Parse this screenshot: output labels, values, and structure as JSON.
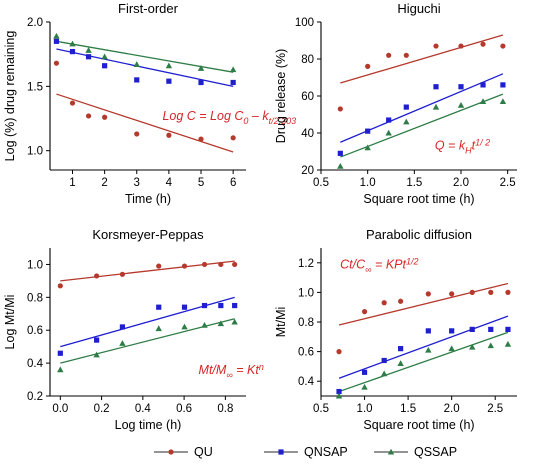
{
  "legend": [
    {
      "name": "QU",
      "color": "#b5392c",
      "marker": "circle"
    },
    {
      "name": "QNSAP",
      "color": "#1f1fd0",
      "marker": "square"
    },
    {
      "name": "QSSAP",
      "color": "#2e7d46",
      "marker": "triangle"
    }
  ],
  "chart_data": [
    {
      "type": "scatter",
      "title": "First-order",
      "xlabel": "Time (h)",
      "ylabel": "Log (%) drug remaining",
      "xlim": [
        0.3,
        6.4
      ],
      "ylim": [
        0.85,
        2.0
      ],
      "xticks": [
        1,
        2,
        3,
        4,
        5,
        6
      ],
      "yticks": [
        1.0,
        1.5,
        2.0
      ],
      "ytick_labels": [
        "1.0",
        "1.5",
        "2.0"
      ],
      "grid": false,
      "annotation": {
        "parts": [
          [
            "Log C = Log C",
            ""
          ],
          [
            "0",
            "sub"
          ],
          [
            " – k",
            ""
          ],
          [
            "t/2.303",
            "sub"
          ]
        ],
        "color": "#d62728",
        "at": [
          3.8,
          1.24
        ]
      },
      "series": [
        {
          "name": "QU",
          "x": [
            0.5,
            1,
            1.5,
            2,
            3,
            4,
            5,
            6
          ],
          "y": [
            1.68,
            1.37,
            1.27,
            1.26,
            1.13,
            1.12,
            1.09,
            1.1
          ],
          "fit": [
            [
              0.5,
              1.44
            ],
            [
              6,
              0.99
            ]
          ]
        },
        {
          "name": "QNSAP",
          "x": [
            0.5,
            1,
            1.5,
            2,
            3,
            4,
            5,
            6
          ],
          "y": [
            1.85,
            1.77,
            1.73,
            1.66,
            1.55,
            1.54,
            1.53,
            1.53
          ],
          "fit": [
            [
              0.5,
              1.79
            ],
            [
              6,
              1.5
            ]
          ]
        },
        {
          "name": "QSSAP",
          "x": [
            0.5,
            1,
            1.5,
            2,
            3,
            4,
            5,
            6
          ],
          "y": [
            1.89,
            1.83,
            1.78,
            1.73,
            1.67,
            1.66,
            1.64,
            1.63
          ],
          "fit": [
            [
              0.5,
              1.85
            ],
            [
              6,
              1.61
            ]
          ]
        }
      ]
    },
    {
      "type": "scatter",
      "title": "Higuchi",
      "xlabel": "Square root time (h)",
      "ylabel": "Drug release (%)",
      "xlim": [
        0.5,
        2.6
      ],
      "ylim": [
        20,
        100
      ],
      "xticks": [
        0.5,
        1.0,
        1.5,
        2.0,
        2.5
      ],
      "xtick_labels": [
        "0.5",
        "1.0",
        "1.5",
        "2.0",
        "2.5"
      ],
      "yticks": [
        20,
        40,
        60,
        80,
        100
      ],
      "grid": false,
      "annotation": {
        "parts": [
          [
            "Q = k",
            ""
          ],
          [
            "H",
            "sub"
          ],
          [
            "t",
            ""
          ],
          [
            "1/ 2",
            "sup"
          ]
        ],
        "color": "#d62728",
        "at": [
          1.72,
          31
        ]
      },
      "series": [
        {
          "name": "QU",
          "x": [
            0.707,
            1.0,
            1.225,
            1.414,
            1.732,
            2.0,
            2.236,
            2.449
          ],
          "y": [
            53,
            76,
            82,
            82,
            87,
            87,
            88,
            87
          ],
          "fit": [
            [
              0.707,
              67
            ],
            [
              2.449,
              93
            ]
          ]
        },
        {
          "name": "QNSAP",
          "x": [
            0.707,
            1.0,
            1.225,
            1.414,
            1.732,
            2.0,
            2.236,
            2.449
          ],
          "y": [
            29,
            41,
            47,
            54,
            65,
            65,
            66,
            66
          ],
          "fit": [
            [
              0.707,
              35
            ],
            [
              2.449,
              72
            ]
          ]
        },
        {
          "name": "QSSAP",
          "x": [
            0.707,
            1.0,
            1.225,
            1.414,
            1.732,
            2.0,
            2.236,
            2.449
          ],
          "y": [
            22,
            32,
            40,
            46,
            54,
            55,
            57,
            57
          ],
          "fit": [
            [
              0.707,
              27
            ],
            [
              2.449,
              61
            ]
          ]
        }
      ]
    },
    {
      "type": "scatter",
      "title": "Korsmeyer-Peppas",
      "xlabel": "Log time (h)",
      "ylabel": "Log Mt/Mi",
      "xlim": [
        -0.05,
        0.9
      ],
      "ylim": [
        0.2,
        1.1
      ],
      "xticks": [
        0.0,
        0.2,
        0.4,
        0.6,
        0.8
      ],
      "xtick_labels": [
        "0.0",
        "0.2",
        "0.4",
        "0.6",
        "0.8"
      ],
      "yticks": [
        0.2,
        0.4,
        0.6,
        0.8,
        1.0
      ],
      "ytick_labels": [
        "0.2",
        "0.4",
        "0.6",
        "0.8",
        "1.0"
      ],
      "grid": false,
      "annotation": {
        "parts": [
          [
            "Mt/M",
            ""
          ],
          [
            "∞",
            "sub"
          ],
          [
            " = Kt",
            ""
          ],
          [
            "n",
            "sup"
          ]
        ],
        "color": "#d62728",
        "at": [
          0.67,
          0.335
        ]
      },
      "series": [
        {
          "name": "QU",
          "x": [
            0.0,
            0.176,
            0.301,
            0.477,
            0.602,
            0.699,
            0.778,
            0.845
          ],
          "y": [
            0.87,
            0.93,
            0.94,
            0.99,
            0.99,
            1.0,
            1.0,
            1.0
          ],
          "fit": [
            [
              0.0,
              0.9
            ],
            [
              0.845,
              1.02
            ]
          ]
        },
        {
          "name": "QNSAP",
          "x": [
            0.0,
            0.176,
            0.301,
            0.477,
            0.602,
            0.699,
            0.778,
            0.845
          ],
          "y": [
            0.46,
            0.54,
            0.62,
            0.74,
            0.74,
            0.75,
            0.75,
            0.75
          ],
          "fit": [
            [
              0.0,
              0.5
            ],
            [
              0.845,
              0.8
            ]
          ]
        },
        {
          "name": "QSSAP",
          "x": [
            0.0,
            0.176,
            0.301,
            0.477,
            0.602,
            0.699,
            0.778,
            0.845
          ],
          "y": [
            0.36,
            0.45,
            0.52,
            0.61,
            0.62,
            0.63,
            0.64,
            0.65
          ],
          "fit": [
            [
              0.0,
              0.4
            ],
            [
              0.845,
              0.67
            ]
          ]
        }
      ]
    },
    {
      "type": "scatter",
      "title": "Parabolic diffusion",
      "xlabel": "Square root time (h)",
      "ylabel": "Mt/Mi",
      "xlim": [
        0.5,
        2.75
      ],
      "ylim": [
        0.3,
        1.3
      ],
      "xticks": [
        0.5,
        1.0,
        1.5,
        2.0,
        2.5
      ],
      "xtick_labels": [
        "0.5",
        "1.0",
        "1.5",
        "2.0",
        "2.5"
      ],
      "yticks": [
        0.4,
        0.6,
        0.8,
        1.0,
        1.2
      ],
      "ytick_labels": [
        "0.4",
        "0.6",
        "0.8",
        "1.0",
        "1.2"
      ],
      "grid": false,
      "annotation": {
        "parts": [
          [
            "Ct/C",
            ""
          ],
          [
            "∞",
            "sub"
          ],
          [
            " = KPt",
            ""
          ],
          [
            "1/2",
            "sup"
          ]
        ],
        "color": "#d62728",
        "at": [
          0.72,
          1.16
        ]
      },
      "series": [
        {
          "name": "QU",
          "x": [
            0.707,
            1.0,
            1.225,
            1.414,
            1.732,
            2.0,
            2.236,
            2.449,
            2.646
          ],
          "y": [
            0.6,
            0.87,
            0.93,
            0.94,
            0.99,
            0.99,
            1.0,
            1.0,
            1.0
          ],
          "fit": [
            [
              0.707,
              0.78
            ],
            [
              2.646,
              1.06
            ]
          ]
        },
        {
          "name": "QNSAP",
          "x": [
            0.707,
            1.0,
            1.225,
            1.414,
            1.732,
            2.0,
            2.236,
            2.449,
            2.646
          ],
          "y": [
            0.33,
            0.46,
            0.54,
            0.62,
            0.74,
            0.74,
            0.75,
            0.75,
            0.75
          ],
          "fit": [
            [
              0.707,
              0.42
            ],
            [
              2.646,
              0.84
            ]
          ]
        },
        {
          "name": "QSSAP",
          "x": [
            0.707,
            1.0,
            1.225,
            1.414,
            1.732,
            2.0,
            2.236,
            2.449,
            2.646
          ],
          "y": [
            0.3,
            0.36,
            0.45,
            0.52,
            0.61,
            0.62,
            0.63,
            0.64,
            0.65
          ],
          "fit": [
            [
              0.707,
              0.33
            ],
            [
              2.646,
              0.73
            ]
          ]
        }
      ]
    }
  ]
}
